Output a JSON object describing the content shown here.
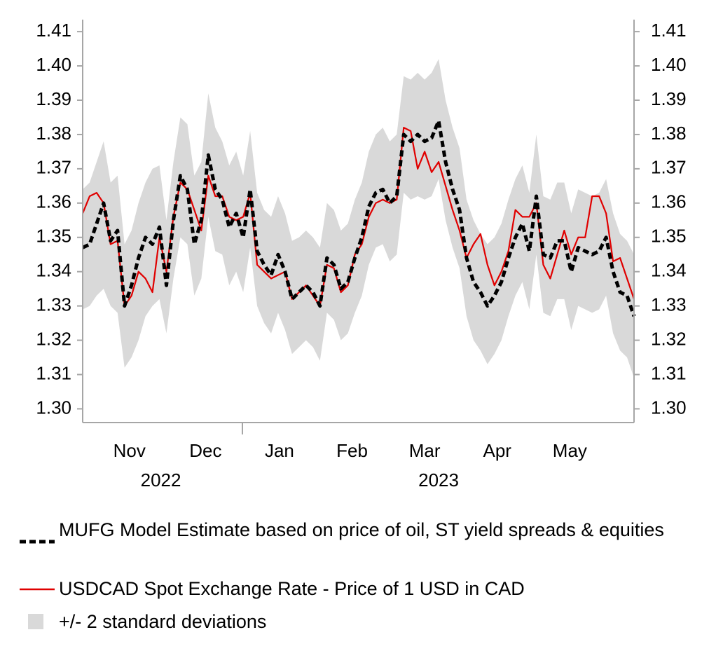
{
  "chart_data": {
    "type": "line",
    "x": [
      0,
      1,
      2,
      3,
      4,
      5,
      6,
      7,
      8,
      9,
      10,
      11,
      12,
      13,
      14,
      15,
      16,
      17,
      18,
      19,
      20,
      21,
      22,
      23,
      24,
      25,
      26,
      27,
      28,
      29,
      30,
      31,
      32,
      33,
      34,
      35,
      36,
      37,
      38,
      39,
      40,
      41,
      42,
      43,
      44,
      45,
      46,
      47,
      48,
      49,
      50,
      51,
      52,
      53,
      54,
      55,
      56,
      57,
      58,
      59,
      60,
      61,
      62,
      63,
      64,
      65,
      66,
      67,
      68,
      69,
      70,
      71,
      72,
      73,
      74,
      75,
      76,
      77,
      78,
      79
    ],
    "xlim": [
      0,
      79
    ],
    "xticks": [
      {
        "value": 6.7,
        "label": "Nov"
      },
      {
        "value": 17.6,
        "label": "Dec"
      },
      {
        "value": 28.2,
        "label": "Jan"
      },
      {
        "value": 38.6,
        "label": "Feb"
      },
      {
        "value": 49.0,
        "label": "Mar"
      },
      {
        "value": 59.4,
        "label": "Apr"
      },
      {
        "value": 69.8,
        "label": "May"
      }
    ],
    "year_labels": [
      {
        "value": 11.2,
        "label": "2022"
      },
      {
        "value": 51.0,
        "label": "2023"
      }
    ],
    "ylim": [
      1.296,
      1.4135
    ],
    "yticks": [
      {
        "value": 1.3,
        "label": "1.30"
      },
      1.31,
      1.32,
      1.33,
      1.34,
      1.35,
      1.36,
      1.37,
      1.38,
      1.39,
      {
        "value": 1.4,
        "label": "1.40"
      },
      1.41
    ],
    "y2lim": [
      1.296,
      1.4135
    ],
    "y2ticks": [
      {
        "value": 1.3,
        "label": "1.30"
      },
      1.31,
      1.32,
      1.33,
      1.34,
      1.35,
      1.36,
      1.37,
      1.38,
      1.39,
      {
        "value": 1.4,
        "label": "1.40"
      },
      1.41
    ],
    "band": {
      "name": "+/- 2 standard deviations",
      "color": "#d9d9d9",
      "lower": [
        1.329,
        1.33,
        1.333,
        1.335,
        1.33,
        1.328,
        1.312,
        1.315,
        1.32,
        1.327,
        1.33,
        1.332,
        1.322,
        1.338,
        1.35,
        1.348,
        1.333,
        1.338,
        1.356,
        1.346,
        1.345,
        1.336,
        1.34,
        1.334,
        1.347,
        1.33,
        1.325,
        1.322,
        1.328,
        1.323,
        1.316,
        1.318,
        1.32,
        1.318,
        1.314,
        1.328,
        1.326,
        1.32,
        1.322,
        1.328,
        1.333,
        1.342,
        1.347,
        1.348,
        1.343,
        1.345,
        1.363,
        1.361,
        1.362,
        1.361,
        1.362,
        1.367,
        1.355,
        1.347,
        1.341,
        1.327,
        1.32,
        1.317,
        1.313,
        1.316,
        1.32,
        1.327,
        1.333,
        1.337,
        1.329,
        1.345,
        1.328,
        1.327,
        1.332,
        1.332,
        1.323,
        1.33,
        1.329,
        1.328,
        1.329,
        1.333,
        1.322,
        1.317,
        1.315,
        1.309
      ],
      "upper": [
        1.364,
        1.366,
        1.372,
        1.378,
        1.366,
        1.368,
        1.348,
        1.352,
        1.36,
        1.366,
        1.37,
        1.371,
        1.355,
        1.372,
        1.385,
        1.383,
        1.368,
        1.372,
        1.392,
        1.382,
        1.378,
        1.371,
        1.375,
        1.368,
        1.381,
        1.363,
        1.358,
        1.356,
        1.362,
        1.357,
        1.349,
        1.35,
        1.352,
        1.35,
        1.347,
        1.36,
        1.358,
        1.352,
        1.354,
        1.361,
        1.366,
        1.375,
        1.38,
        1.382,
        1.378,
        1.38,
        1.397,
        1.396,
        1.398,
        1.396,
        1.398,
        1.402,
        1.39,
        1.382,
        1.376,
        1.361,
        1.355,
        1.351,
        1.348,
        1.35,
        1.354,
        1.361,
        1.367,
        1.371,
        1.363,
        1.38,
        1.362,
        1.361,
        1.366,
        1.366,
        1.357,
        1.364,
        1.363,
        1.362,
        1.363,
        1.367,
        1.357,
        1.351,
        1.349,
        1.345
      ]
    },
    "series": [
      {
        "name": "MUFG Model Estimate based on price of oil, ST yield spreads & equities",
        "color": "#000000",
        "dashed": true,
        "values": [
          1.347,
          1.348,
          1.354,
          1.36,
          1.349,
          1.352,
          1.33,
          1.336,
          1.344,
          1.35,
          1.348,
          1.353,
          1.336,
          1.355,
          1.368,
          1.364,
          1.348,
          1.355,
          1.374,
          1.364,
          1.361,
          1.353,
          1.357,
          1.35,
          1.364,
          1.346,
          1.342,
          1.339,
          1.345,
          1.34,
          1.332,
          1.334,
          1.336,
          1.334,
          1.33,
          1.344,
          1.342,
          1.335,
          1.337,
          1.344,
          1.35,
          1.359,
          1.363,
          1.364,
          1.36,
          1.362,
          1.38,
          1.378,
          1.38,
          1.378,
          1.379,
          1.384,
          1.372,
          1.364,
          1.358,
          1.344,
          1.337,
          1.334,
          1.33,
          1.333,
          1.337,
          1.344,
          1.35,
          1.354,
          1.346,
          1.362,
          1.345,
          1.344,
          1.349,
          1.349,
          1.34,
          1.347,
          1.346,
          1.345,
          1.346,
          1.35,
          1.34,
          1.334,
          1.333,
          1.327
        ]
      },
      {
        "name": "USDCAD Spot Exchange Rate - Price of 1 USD in CAD",
        "color": "#e00000",
        "dashed": false,
        "values": [
          1.357,
          1.362,
          1.363,
          1.36,
          1.348,
          1.349,
          1.33,
          1.333,
          1.34,
          1.338,
          1.334,
          1.35,
          1.34,
          1.356,
          1.366,
          1.364,
          1.358,
          1.352,
          1.368,
          1.362,
          1.362,
          1.356,
          1.355,
          1.356,
          1.363,
          1.342,
          1.34,
          1.338,
          1.339,
          1.34,
          1.332,
          1.334,
          1.336,
          1.333,
          1.33,
          1.342,
          1.341,
          1.334,
          1.336,
          1.345,
          1.348,
          1.356,
          1.36,
          1.361,
          1.36,
          1.361,
          1.382,
          1.381,
          1.37,
          1.375,
          1.369,
          1.372,
          1.365,
          1.358,
          1.352,
          1.344,
          1.348,
          1.351,
          1.342,
          1.336,
          1.34,
          1.346,
          1.358,
          1.356,
          1.356,
          1.36,
          1.342,
          1.338,
          1.345,
          1.352,
          1.345,
          1.35,
          1.35,
          1.362,
          1.362,
          1.357,
          1.343,
          1.344,
          1.338,
          1.332
        ]
      }
    ]
  }
}
